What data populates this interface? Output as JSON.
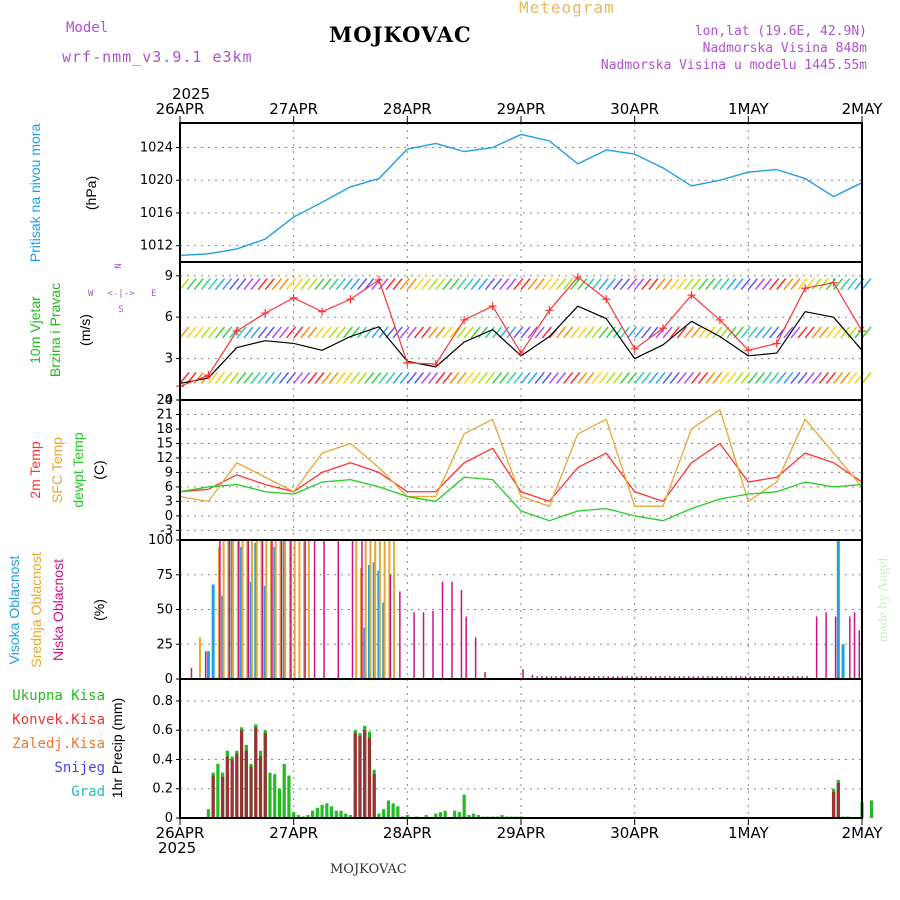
{
  "header": {
    "model_label": "Model",
    "model_value": "wrf-nmm_v3.9.1 e3km",
    "station": "MOJKOVAC",
    "product": "Meteogram",
    "coords": "lon,lat (19.6E, 42.9N)",
    "elevation": "Nadmorska Visina 848m",
    "model_elevation": "Nadmorska Visina u modelu 1445.55m",
    "year_top": "2025",
    "year_bottom": "2025",
    "footer_station": "MOJKOVAC",
    "watermark": "made by Angel"
  },
  "colors": {
    "pressure": "#1ea0e6",
    "temp2m": "#ff3333",
    "sfc": "#e6a832",
    "dewpt": "#22cc22",
    "wind_speed": "#000000",
    "wind_gust": "#ff3333",
    "high_cloud": "#1ea0e6",
    "mid_cloud": "#e6a832",
    "low_cloud": "#cc1188",
    "total_precip": "#22bb22",
    "conv_precip": "#993333"
  },
  "chart_data": [
    {
      "id": "pressure",
      "type": "line",
      "ylabel_1": "Pritisak na nivou mora",
      "ylabel_2": "(hPa)",
      "yticks": [
        "1012",
        "1016",
        "1020",
        "1024"
      ],
      "ylim": [
        1010,
        1027
      ],
      "x_hours": [
        0,
        6,
        12,
        18,
        24,
        30,
        36,
        42,
        48,
        54,
        60,
        66,
        72,
        78,
        84,
        90,
        96,
        102,
        108,
        114,
        120,
        126,
        132,
        138,
        144
      ],
      "series": [
        {
          "name": "Pritisak",
          "values": [
            1010.8,
            1011,
            1011.6,
            1012.8,
            1015.5,
            1017.3,
            1019.2,
            1020.2,
            1023.8,
            1024.5,
            1023.5,
            1024,
            1025.6,
            1024.8,
            1022,
            1023.7,
            1023.2,
            1021.5,
            1019.3,
            1020,
            1021,
            1021.3,
            1020.2,
            1018,
            1019.7
          ]
        }
      ]
    },
    {
      "id": "wind",
      "type": "line",
      "ylabel_1": "10m Vjetar",
      "ylabel_2": "Brzina i Pravac",
      "ylabel_3": "(m/s)",
      "compass": {
        "n": "N",
        "s": "S",
        "e": "E",
        "w": "W",
        "arrows": "<-|->"
      },
      "yticks": [
        "0",
        "3",
        "6",
        "9"
      ],
      "ylim": [
        0,
        10
      ],
      "x_hours": [
        0,
        6,
        12,
        18,
        24,
        30,
        36,
        42,
        48,
        54,
        60,
        66,
        72,
        78,
        84,
        90,
        96,
        102,
        108,
        114,
        120,
        126,
        132,
        138,
        144
      ],
      "series": [
        {
          "name": "Brzina",
          "values": [
            1.2,
            1.6,
            3.8,
            4.3,
            4.1,
            3.6,
            4.6,
            5.3,
            2.8,
            2.4,
            4.2,
            5.1,
            3.2,
            4.6,
            6.8,
            5.9,
            3.0,
            4.0,
            5.7,
            4.6,
            3.2,
            3.4,
            6.4,
            6.0,
            3.6
          ]
        },
        {
          "name": "Udari",
          "values": [
            1.0,
            1.8,
            5.0,
            6.3,
            7.4,
            6.4,
            7.3,
            8.7,
            2.7,
            2.6,
            5.8,
            6.8,
            3.4,
            6.5,
            8.9,
            7.3,
            3.7,
            5.2,
            7.6,
            5.8,
            3.6,
            4.1,
            8.1,
            8.5,
            5.0
          ]
        }
      ],
      "barb_levels": [
        1.2,
        4.5,
        8.0
      ]
    },
    {
      "id": "temp",
      "type": "line",
      "ylabel_1": "2m Temp",
      "ylabel_2": "SFC Temp",
      "ylabel_3": "dewpt Temp",
      "ylabel_4": "(C)",
      "yticks": [
        "-3",
        "0",
        "3",
        "6",
        "9",
        "12",
        "15",
        "18",
        "21",
        "24"
      ],
      "ylim": [
        -5,
        24
      ],
      "x_hours": [
        0,
        6,
        12,
        18,
        24,
        30,
        36,
        42,
        48,
        54,
        60,
        66,
        72,
        78,
        84,
        90,
        96,
        102,
        108,
        114,
        120,
        126,
        132,
        138,
        144
      ],
      "series": [
        {
          "name": "2m Temp",
          "values": [
            5,
            5.5,
            8.5,
            6.5,
            5,
            9,
            11,
            9,
            5,
            5,
            11,
            14,
            5,
            3,
            10,
            13,
            5,
            3,
            11,
            15,
            7,
            8,
            13,
            11,
            7
          ]
        },
        {
          "name": "SFC Temp",
          "values": [
            4,
            3,
            11,
            8,
            5,
            13,
            15,
            10,
            4,
            4,
            17,
            20,
            4,
            2,
            17,
            20,
            2,
            2,
            18,
            22,
            3,
            7,
            20,
            13,
            6
          ]
        },
        {
          "name": "dewpt Temp",
          "values": [
            5,
            6,
            6.5,
            5,
            4.5,
            7,
            7.5,
            6,
            4,
            3,
            8,
            7.5,
            1,
            -1,
            1,
            1.5,
            0,
            -1,
            1.5,
            3.5,
            4.5,
            5,
            7,
            6,
            6.5
          ]
        }
      ]
    },
    {
      "id": "clouds",
      "type": "bar",
      "ylabel_1": "Visoka Oblacnost",
      "ylabel_2": "Srednja Oblacnost",
      "ylabel_3": "Niska Oblacnost",
      "ylabel_4": "(%)",
      "yticks": [
        "0",
        "25",
        "50",
        "75",
        "100"
      ],
      "ylim": [
        0,
        100
      ],
      "series": [
        {
          "name": "Visoka",
          "x_hours": [
            6,
            7,
            9,
            11,
            13,
            15,
            16,
            18,
            20,
            22,
            39,
            40,
            41,
            42,
            43,
            139,
            140
          ],
          "values": [
            20,
            68,
            60,
            100,
            95,
            70,
            98,
            67,
            95,
            100,
            37,
            82,
            84,
            78,
            55,
            100,
            25
          ]
        },
        {
          "name": "Srednja",
          "x_hours": [
            4,
            8,
            9,
            10,
            11,
            12,
            13,
            14,
            15,
            16,
            17,
            18,
            19,
            20,
            21,
            22,
            23,
            24,
            25,
            26,
            27,
            37,
            38,
            39,
            40,
            41,
            42,
            43,
            44,
            45
          ],
          "values": [
            30,
            95,
            100,
            100,
            100,
            100,
            100,
            100,
            100,
            100,
            100,
            100,
            100,
            100,
            100,
            100,
            100,
            100,
            100,
            100,
            100,
            100,
            80,
            100,
            100,
            100,
            100,
            100,
            100,
            100
          ]
        },
        {
          "name": "Niska",
          "x_hours": [
            2,
            5,
            8,
            10,
            12,
            14,
            17,
            19,
            21,
            23,
            26,
            28,
            30,
            33,
            36,
            38,
            44,
            46,
            49,
            51,
            53,
            55,
            57,
            59,
            60,
            62,
            64,
            72,
            74,
            75,
            76,
            77,
            78,
            79,
            80,
            81,
            82,
            83,
            84,
            85,
            86,
            87,
            88,
            89,
            90,
            91,
            92,
            93,
            94,
            95,
            96,
            97,
            98,
            99,
            100,
            101,
            102,
            103,
            104,
            105,
            106,
            107,
            108,
            109,
            110,
            111,
            112,
            113,
            114,
            115,
            116,
            117,
            118,
            119,
            120,
            121,
            122,
            123,
            124,
            125,
            126,
            127,
            128,
            129,
            130,
            131,
            132,
            134,
            136,
            138,
            141,
            142,
            143
          ],
          "values": [
            8,
            20,
            100,
            100,
            100,
            100,
            100,
            100,
            100,
            100,
            100,
            100,
            100,
            100,
            100,
            100,
            75,
            63,
            48,
            48,
            49,
            70,
            70,
            64,
            45,
            30,
            5,
            7,
            3,
            2,
            2,
            2,
            2,
            2,
            2,
            2,
            2,
            2,
            2,
            2,
            2,
            2,
            2,
            2,
            2,
            2,
            2,
            2,
            2,
            2,
            2,
            2,
            2,
            2,
            2,
            2,
            2,
            2,
            2,
            2,
            2,
            2,
            2,
            2,
            2,
            2,
            2,
            2,
            2,
            2,
            2,
            2,
            2,
            2,
            2,
            2,
            2,
            2,
            2,
            2,
            2,
            2,
            2,
            2,
            2,
            2,
            2,
            45,
            48,
            45,
            45,
            48,
            35
          ]
        }
      ]
    },
    {
      "id": "precip",
      "type": "bar",
      "ylabel_1": "1hr Precip",
      "ylabel_2": "(mm)",
      "legend": [
        "Ukupna Kisa",
        "Konvek.Kisa",
        "Zaledj.Kisa",
        "Snijeg",
        "Grad"
      ],
      "yticks": [
        "0",
        "0.2",
        "0.4",
        "0.6",
        "0.8"
      ],
      "ylim": [
        0,
        0.95
      ],
      "series": [
        {
          "name": "Ukupna Kisa",
          "x_hours": [
            6,
            7,
            8,
            9,
            10,
            11,
            12,
            13,
            14,
            15,
            16,
            17,
            18,
            19,
            20,
            21,
            22,
            23,
            24,
            25,
            26,
            27,
            28,
            29,
            30,
            31,
            32,
            33,
            34,
            35,
            36,
            37,
            38,
            39,
            40,
            41,
            42,
            43,
            44,
            45,
            46,
            47,
            48,
            50,
            52,
            54,
            55,
            56,
            58,
            59,
            60,
            61,
            62,
            63,
            64,
            65,
            66,
            67,
            68,
            69,
            70,
            71,
            72,
            138,
            139,
            140,
            141,
            144,
            146
          ],
          "values": [
            0.06,
            0.31,
            0.37,
            0.31,
            0.46,
            0.42,
            0.46,
            0.62,
            0.5,
            0.37,
            0.64,
            0.46,
            0.6,
            0.31,
            0.3,
            0.2,
            0.37,
            0.29,
            0.04,
            0.02,
            0.01,
            0.02,
            0.05,
            0.07,
            0.09,
            0.1,
            0.08,
            0.05,
            0.05,
            0.03,
            0.02,
            0.6,
            0.58,
            0.63,
            0.59,
            0.33,
            0.03,
            0.06,
            0.12,
            0.1,
            0.08,
            0.01,
            0.02,
            0.01,
            0.02,
            0.03,
            0.04,
            0.05,
            0.05,
            0.04,
            0.16,
            0.02,
            0.03,
            0.02,
            0.01,
            0.01,
            0.01,
            0.01,
            0.02,
            0.01,
            0.01,
            0.01,
            0.01,
            0.2,
            0.26,
            0.01,
            0.01,
            0.11,
            0.12
          ]
        },
        {
          "name": "Konvek.Kisa",
          "x_hours": [
            7,
            9,
            10,
            11,
            12,
            13,
            14,
            15,
            16,
            17,
            18,
            37,
            38,
            39,
            40,
            41,
            138,
            139
          ],
          "values": [
            0.29,
            0.28,
            0.42,
            0.4,
            0.44,
            0.6,
            0.46,
            0.35,
            0.62,
            0.42,
            0.58,
            0.58,
            0.56,
            0.6,
            0.55,
            0.3,
            0.18,
            0.24
          ]
        }
      ]
    }
  ],
  "x_axis": {
    "labels": [
      "26APR",
      "27APR",
      "28APR",
      "29APR",
      "30APR",
      "1MAY",
      "2MAY"
    ]
  }
}
